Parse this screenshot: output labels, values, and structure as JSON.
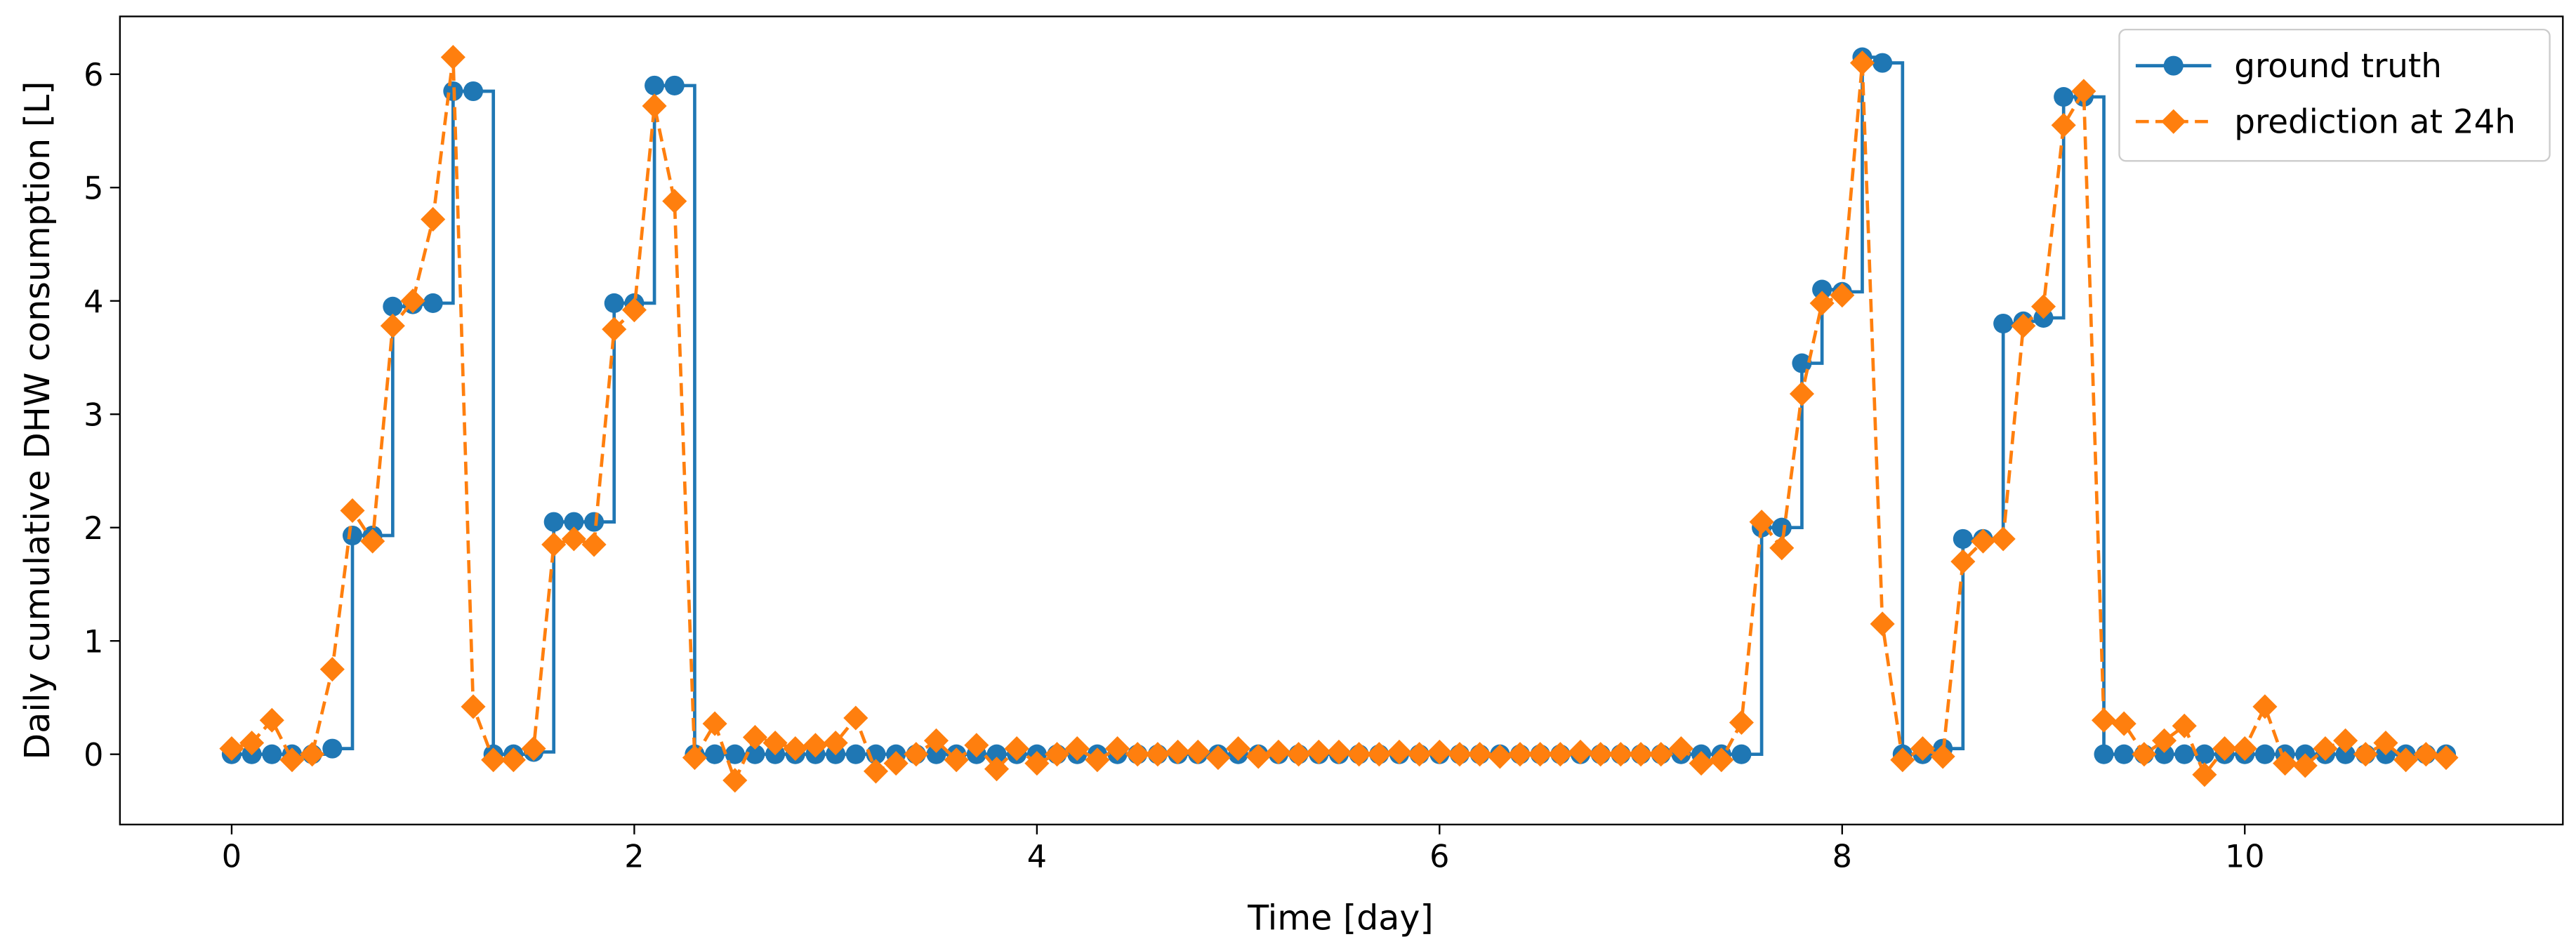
{
  "chart_data": {
    "type": "line",
    "xlabel": "Time [day]",
    "ylabel": "Daily cumulative DHW consumption [L]",
    "x": [
      0,
      0.1,
      0.2,
      0.3,
      0.4,
      0.5,
      0.6,
      0.7,
      0.8,
      0.9,
      1,
      1.1,
      1.2,
      1.3,
      1.4,
      1.5,
      1.6,
      1.7,
      1.8,
      1.9,
      2,
      2.1,
      2.2,
      2.3,
      2.4,
      2.5,
      2.6,
      2.7,
      2.8,
      2.9,
      3,
      3.1,
      3.2,
      3.3,
      3.4,
      3.5,
      3.6,
      3.7,
      3.8,
      3.9,
      4,
      4.1,
      4.2,
      4.3,
      4.4,
      4.5,
      4.6,
      4.7,
      4.8,
      4.9,
      5,
      5.1,
      5.2,
      5.3,
      5.4,
      5.5,
      5.6,
      5.7,
      5.8,
      5.9,
      6,
      6.1,
      6.2,
      6.3,
      6.4,
      6.5,
      6.6,
      6.7,
      6.8,
      6.9,
      7,
      7.1,
      7.2,
      7.3,
      7.4,
      7.5,
      7.6,
      7.7,
      7.8,
      7.9,
      8,
      8.1,
      8.2,
      8.3,
      8.4,
      8.5,
      8.6,
      8.7,
      8.8,
      8.9,
      9,
      9.1,
      9.2,
      9.3,
      9.4,
      9.5,
      9.6,
      9.7,
      9.8,
      9.9,
      10,
      10.1,
      10.2,
      10.3,
      10.4,
      10.5,
      10.6,
      10.7,
      10.8,
      10.9,
      11
    ],
    "series": [
      {
        "name": "ground truth",
        "color": "#1f77b4",
        "marker": "circle",
        "linestyle": "solid",
        "drawstyle": "steps",
        "values": [
          0,
          0,
          0,
          0,
          0,
          0.05,
          1.93,
          1.93,
          3.95,
          3.97,
          3.98,
          5.85,
          5.85,
          0,
          0,
          0.02,
          2.05,
          2.05,
          2.05,
          3.98,
          3.98,
          5.9,
          5.9,
          0,
          0,
          0,
          0,
          0,
          0,
          0,
          0,
          0,
          0,
          0,
          0,
          0,
          0,
          0,
          0,
          0,
          0,
          0,
          0,
          0,
          0,
          0,
          0,
          0,
          0,
          0,
          0,
          0,
          0,
          0,
          0,
          0,
          0,
          0,
          0,
          0,
          0,
          0,
          0,
          0,
          0,
          0,
          0,
          0,
          0,
          0,
          0,
          0,
          0,
          0,
          0,
          0,
          2.0,
          2.0,
          3.45,
          4.1,
          4.08,
          6.15,
          6.1,
          0,
          0,
          0.05,
          1.9,
          1.9,
          3.8,
          3.82,
          3.85,
          5.8,
          5.8,
          0,
          0,
          0,
          0,
          0,
          0,
          0,
          0,
          0,
          0,
          0,
          0,
          0,
          0,
          0,
          0,
          0,
          0
        ]
      },
      {
        "name": "prediction at 24h",
        "color": "#ff7f0e",
        "marker": "diamond",
        "linestyle": "dashed",
        "drawstyle": "default",
        "values": [
          0.05,
          0.1,
          0.3,
          -0.05,
          0,
          0.75,
          2.15,
          1.88,
          3.78,
          4.0,
          4.72,
          6.15,
          0.42,
          -0.05,
          -0.05,
          0.05,
          1.85,
          1.9,
          1.85,
          3.75,
          3.92,
          5.72,
          4.88,
          -0.03,
          0.27,
          -0.23,
          0.15,
          0.1,
          0.05,
          0.08,
          0.1,
          0.32,
          -0.15,
          -0.08,
          0,
          0.12,
          -0.05,
          0.08,
          -0.13,
          0.05,
          -0.08,
          0,
          0.05,
          -0.05,
          0.05,
          0,
          0,
          0.02,
          0.02,
          -0.03,
          0.05,
          -0.02,
          0.02,
          0,
          0.02,
          0.02,
          0,
          0,
          0.02,
          0,
          0.02,
          0,
          0,
          -0.02,
          0,
          0,
          0,
          0.02,
          0,
          0,
          0,
          0,
          0.05,
          -0.08,
          -0.05,
          0.28,
          2.05,
          1.82,
          3.18,
          3.98,
          4.05,
          6.1,
          1.15,
          -0.05,
          0.05,
          -0.02,
          1.7,
          1.88,
          1.9,
          3.78,
          3.95,
          5.55,
          5.85,
          0.3,
          0.27,
          0,
          0.12,
          0.25,
          -0.18,
          0.05,
          0.05,
          0.42,
          -0.08,
          -0.1,
          0.05,
          0.12,
          0,
          0.1,
          -0.05,
          0,
          -0.03
        ]
      }
    ],
    "xlim": [
      -0.555,
      11.58
    ],
    "ylim": [
      -0.62,
      6.51
    ],
    "xticks": [
      0,
      2,
      4,
      6,
      8,
      10
    ],
    "yticks": [
      0,
      1,
      2,
      3,
      4,
      5,
      6
    ],
    "grid": false,
    "legend": "upper right"
  }
}
